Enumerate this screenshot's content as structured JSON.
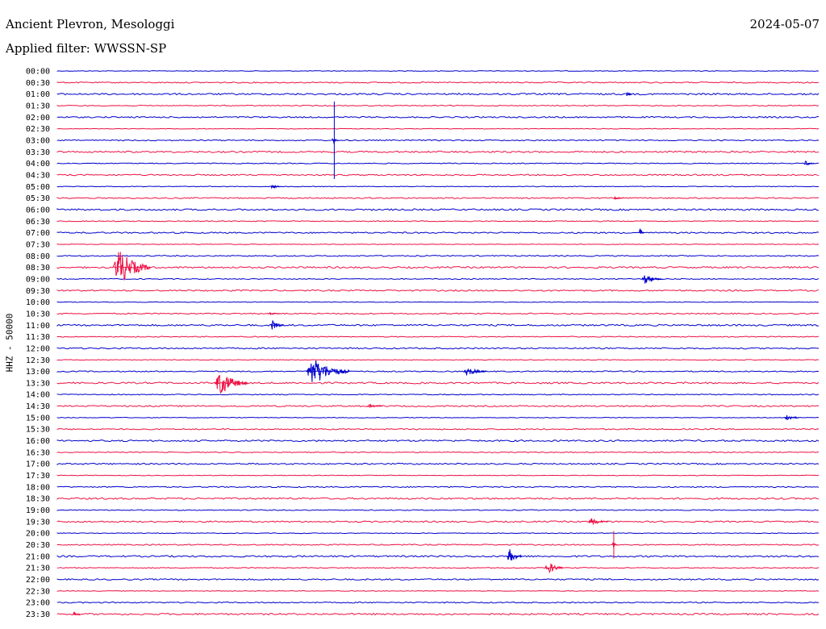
{
  "header": {
    "station": "Ancient Plevron, Mesologgi",
    "date": "2024-05-07",
    "filter_label": "Applied filter: WWSSN-SP",
    "channel_label": "HHZ - 50000"
  },
  "colors": {
    "even_hour_trace": "#0000cc",
    "odd_hour_trace": "#ee1144"
  },
  "chart_data": {
    "type": "line",
    "title": "Ancient Plevron, Mesologgi",
    "ylabel": "HHZ - 50000",
    "tick_labels": [
      "00:00",
      "00:30",
      "01:00",
      "01:30",
      "02:00",
      "02:30",
      "03:00",
      "03:30",
      "04:00",
      "04:30",
      "05:00",
      "05:30",
      "06:00",
      "06:30",
      "07:00",
      "07:30",
      "08:00",
      "08:30",
      "09:00",
      "09:30",
      "10:00",
      "10:30",
      "11:00",
      "11:30",
      "12:00",
      "12:30",
      "13:00",
      "13:30",
      "14:00",
      "14:30",
      "15:00",
      "15:30",
      "16:00",
      "16:30",
      "17:00",
      "17:30",
      "18:00",
      "18:30",
      "19:00",
      "19:30",
      "20:00",
      "20:30",
      "21:00",
      "21:30",
      "22:00",
      "22:30",
      "23:00",
      "23:30"
    ],
    "x_unit": "minutes within 30-minute row",
    "x_range": [
      0,
      30
    ],
    "events": [
      {
        "row": "03:00",
        "start_min": 10.9,
        "amplitude": 48,
        "duration_min": 0.25,
        "spike": true
      },
      {
        "row": "08:30",
        "start_min": 2.2,
        "amplitude": 24,
        "duration_min": 1.5
      },
      {
        "row": "09:00",
        "start_min": 23.0,
        "amplitude": 6,
        "duration_min": 0.8
      },
      {
        "row": "10:30",
        "start_min": 8.3,
        "amplitude": 2,
        "duration_min": 0.5
      },
      {
        "row": "11:00",
        "start_min": 8.4,
        "amplitude": 7,
        "duration_min": 0.5
      },
      {
        "row": "13:00",
        "start_min": 9.8,
        "amplitude": 18,
        "duration_min": 1.7
      },
      {
        "row": "13:00",
        "start_min": 16.0,
        "amplitude": 6,
        "duration_min": 0.9
      },
      {
        "row": "13:30",
        "start_min": 6.2,
        "amplitude": 16,
        "duration_min": 1.3
      },
      {
        "row": "14:30",
        "start_min": 12.2,
        "amplitude": 2,
        "duration_min": 0.6
      },
      {
        "row": "15:00",
        "start_min": 28.6,
        "amplitude": 5,
        "duration_min": 0.6
      },
      {
        "row": "19:30",
        "start_min": 20.9,
        "amplitude": 5,
        "duration_min": 0.8
      },
      {
        "row": "20:30",
        "start_min": 21.9,
        "amplitude": 17,
        "duration_min": 0.2,
        "spike": true
      },
      {
        "row": "21:00",
        "start_min": 17.7,
        "amplitude": 10,
        "duration_min": 0.6
      },
      {
        "row": "21:30",
        "start_min": 19.2,
        "amplitude": 9,
        "duration_min": 0.7
      },
      {
        "row": "23:30",
        "start_min": 0.6,
        "amplitude": 3,
        "duration_min": 0.3
      },
      {
        "row": "04:00",
        "start_min": 29.4,
        "amplitude": 4,
        "duration_min": 0.4
      },
      {
        "row": "07:00",
        "start_min": 22.9,
        "amplitude": 6,
        "duration_min": 0.2
      },
      {
        "row": "01:00",
        "start_min": 22.4,
        "amplitude": 4,
        "duration_min": 0.2
      },
      {
        "row": "05:00",
        "start_min": 8.4,
        "amplitude": 3,
        "duration_min": 0.4
      },
      {
        "row": "05:30",
        "start_min": 21.9,
        "amplitude": 2,
        "duration_min": 0.4
      }
    ]
  }
}
